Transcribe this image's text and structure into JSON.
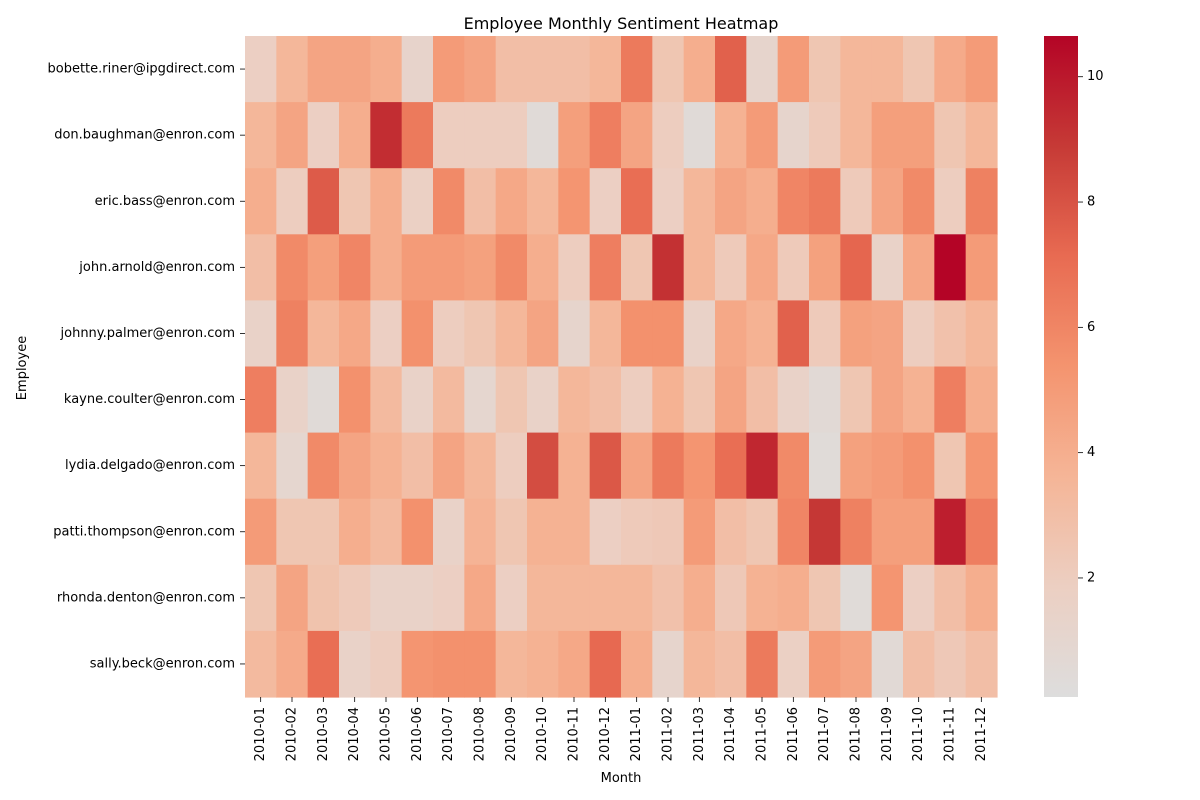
{
  "chart_data": {
    "type": "heatmap",
    "title": "Employee Monthly Sentiment Heatmap",
    "xlabel": "Month",
    "ylabel": "Employee",
    "colormap": "coolwarm",
    "colorbar": {
      "min": 0.1,
      "max": 10.65,
      "ticks": [
        2,
        4,
        6,
        8,
        10
      ],
      "colors": [
        "#dddddd",
        "#eccfc2",
        "#f5b597",
        "#f4946f",
        "#e86b52",
        "#c63a36",
        "#b40426"
      ]
    },
    "x": [
      "2010-01",
      "2010-02",
      "2010-03",
      "2010-04",
      "2010-05",
      "2010-06",
      "2010-07",
      "2010-08",
      "2010-09",
      "2010-10",
      "2010-11",
      "2010-12",
      "2011-01",
      "2011-02",
      "2011-03",
      "2011-04",
      "2011-05",
      "2011-06",
      "2011-07",
      "2011-08",
      "2011-09",
      "2011-10",
      "2011-11",
      "2011-12"
    ],
    "y": [
      "bobette.riner@ipgdirect.com",
      "don.baughman@enron.com",
      "eric.bass@enron.com",
      "john.arnold@enron.com",
      "johnny.palmer@enron.com",
      "kayne.coulter@enron.com",
      "lydia.delgado@enron.com",
      "patti.thompson@enron.com",
      "rhonda.denton@enron.com",
      "sally.beck@enron.com"
    ],
    "values": [
      [
        1.8,
        3.5,
        4.5,
        4.5,
        4.0,
        1.3,
        5.0,
        4.5,
        3.0,
        3.0,
        3.0,
        3.5,
        6.5,
        2.5,
        4.0,
        7.5,
        1.2,
        5.0,
        2.5,
        3.5,
        3.5,
        2.5,
        4.2,
        5.0
      ],
      [
        3.5,
        4.5,
        1.8,
        4.0,
        9.3,
        6.5,
        2.0,
        2.0,
        2.0,
        0.5,
        4.8,
        6.3,
        4.5,
        2.0,
        0.5,
        3.8,
        5.0,
        1.2,
        2.2,
        3.5,
        4.8,
        4.8,
        2.5,
        3.5
      ],
      [
        4.0,
        2.0,
        7.7,
        2.5,
        4.0,
        1.7,
        5.8,
        3.0,
        4.3,
        3.5,
        5.3,
        1.8,
        7.0,
        1.8,
        3.5,
        4.5,
        4.0,
        6.0,
        6.5,
        2.2,
        4.5,
        5.8,
        2.0,
        6.2
      ],
      [
        3.0,
        5.8,
        4.8,
        6.0,
        4.0,
        5.0,
        5.0,
        4.7,
        5.8,
        4.0,
        2.0,
        6.3,
        2.5,
        9.2,
        3.5,
        2.2,
        4.3,
        2.2,
        4.7,
        7.3,
        1.5,
        4.3,
        10.65,
        5.0
      ],
      [
        1.5,
        6.2,
        3.5,
        4.3,
        1.8,
        5.5,
        2.0,
        2.5,
        3.5,
        4.5,
        1.2,
        3.5,
        5.5,
        5.5,
        1.5,
        4.3,
        3.8,
        7.5,
        2.2,
        4.7,
        4.5,
        2.0,
        2.8,
        3.5
      ],
      [
        6.3,
        1.5,
        0.5,
        5.5,
        3.3,
        1.5,
        3.3,
        1.0,
        2.5,
        1.5,
        3.5,
        3.0,
        2.0,
        3.8,
        2.5,
        4.5,
        3.0,
        1.5,
        0.6,
        2.5,
        4.5,
        3.8,
        6.3,
        4.0
      ],
      [
        3.5,
        1.0,
        5.8,
        4.5,
        3.8,
        3.0,
        4.5,
        3.5,
        2.0,
        8.2,
        3.8,
        7.8,
        4.5,
        6.5,
        5.3,
        7.0,
        9.5,
        5.8,
        0.4,
        4.7,
        5.0,
        5.5,
        2.5,
        5.3
      ],
      [
        5.0,
        2.5,
        2.5,
        4.0,
        3.3,
        5.5,
        1.5,
        3.7,
        2.5,
        3.8,
        3.8,
        1.8,
        2.2,
        2.3,
        5.0,
        3.0,
        2.5,
        6.0,
        9.0,
        6.2,
        4.8,
        4.8,
        9.8,
        6.3
      ],
      [
        2.5,
        4.5,
        2.7,
        2.2,
        1.5,
        1.5,
        1.8,
        4.3,
        1.8,
        3.5,
        3.5,
        3.5,
        3.5,
        2.8,
        4.0,
        2.3,
        3.8,
        4.0,
        2.5,
        0.4,
        5.3,
        1.8,
        3.0,
        4.0
      ],
      [
        3.3,
        4.2,
        7.0,
        1.5,
        2.0,
        5.3,
        5.5,
        5.5,
        3.5,
        3.8,
        4.3,
        7.2,
        4.0,
        1.2,
        3.5,
        3.0,
        6.5,
        1.7,
        5.0,
        4.5,
        0.6,
        3.0,
        2.3,
        3.0
      ]
    ]
  }
}
